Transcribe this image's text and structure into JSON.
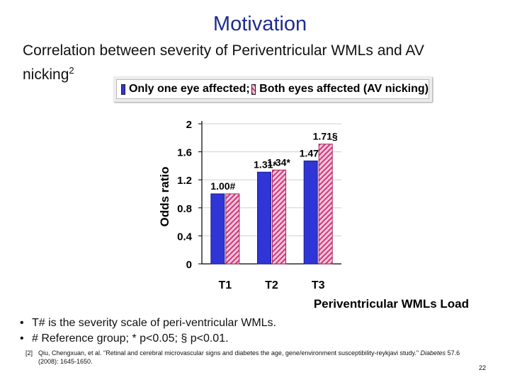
{
  "slide": {
    "title": "Motivation",
    "subtitle": "Correlation between severity of Periventricular WMLs and AV nicking",
    "subtitle_superscript": "2",
    "bullets": [
      "T# is the severity scale of peri-ventricular WMLs.",
      "# Reference group; * p<0.05; § p<0.01."
    ],
    "reference_number": "[2]",
    "reference_text": "Qiu, Chengxuan, et al. \"Retinal and cerebral microvascular signs and diabetes the age, gene/environment susceptibility-reykjavi study.\"",
    "reference_journal": "Diabetes",
    "reference_pages": "57.6 (2008): 1645-1650.",
    "page_number": "22"
  },
  "chart_data": {
    "type": "bar",
    "title": "",
    "xlabel": "Periventricular WMLs Load",
    "ylabel": "Odds ratio",
    "categories": [
      "T1",
      "T2",
      "T3"
    ],
    "ylim": [
      0,
      2
    ],
    "yticks": [
      "0",
      "0.4",
      "0.8",
      "1.2",
      "1.6",
      "2"
    ],
    "legend_position": "top",
    "series": [
      {
        "name": "Only one eye affected;",
        "values": [
          1.0,
          1.31,
          1.47
        ],
        "labels": [
          "1.00#",
          "1.31*",
          "1.47§"
        ],
        "color": "#3035d6"
      },
      {
        "name": "Both eyes affected (AV nicking)",
        "values": [
          1.0,
          1.34,
          1.71
        ],
        "labels": [
          "",
          "1.34*",
          "1.71§"
        ],
        "color": "#d3357a"
      }
    ]
  }
}
